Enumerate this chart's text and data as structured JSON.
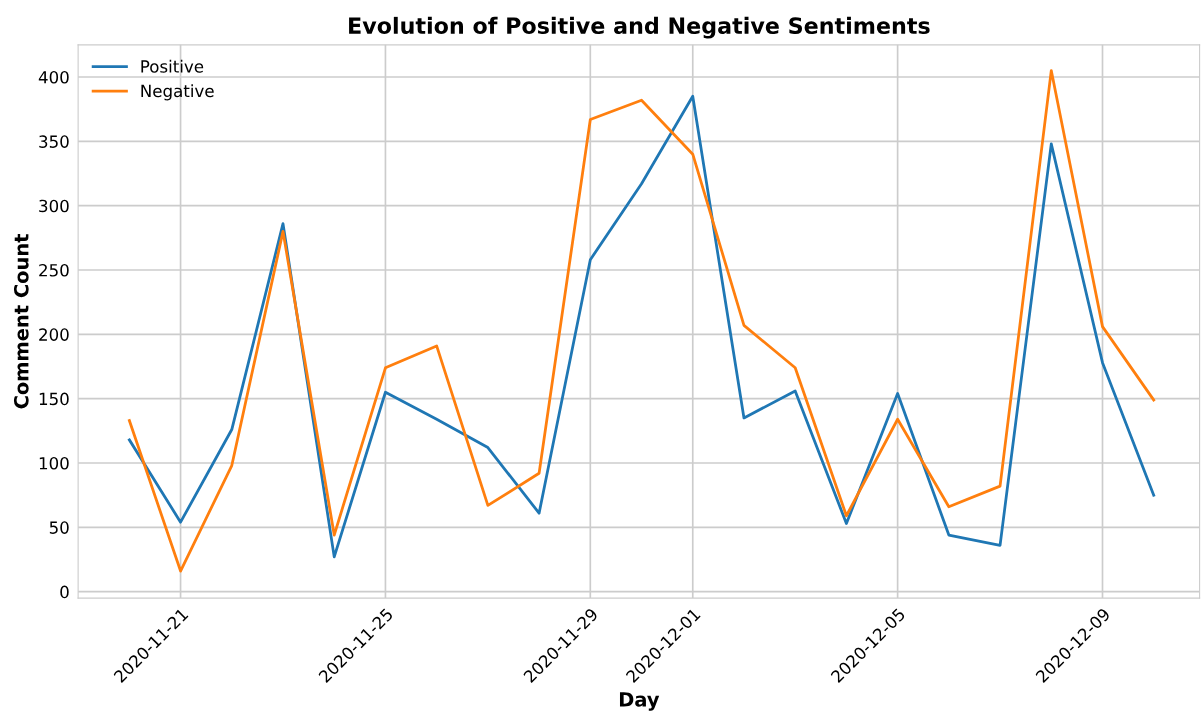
{
  "chart_data": {
    "type": "line",
    "title": "Evolution of Positive and Negative Sentiments",
    "xlabel": "Day",
    "ylabel": "Comment Count",
    "x": [
      "2020-11-20",
      "2020-11-21",
      "2020-11-22",
      "2020-11-23",
      "2020-11-24",
      "2020-11-25",
      "2020-11-26",
      "2020-11-27",
      "2020-11-28",
      "2020-11-29",
      "2020-11-30",
      "2020-12-01",
      "2020-12-02",
      "2020-12-03",
      "2020-12-04",
      "2020-12-05",
      "2020-12-06",
      "2020-12-07",
      "2020-12-08",
      "2020-12-09",
      "2020-12-10"
    ],
    "series": [
      {
        "name": "Positive",
        "color": "#1f77b4",
        "values": [
          118,
          54,
          126,
          286,
          27,
          155,
          134,
          112,
          61,
          258,
          317,
          385,
          135,
          156,
          53,
          154,
          44,
          36,
          348,
          178,
          75
        ]
      },
      {
        "name": "Negative",
        "color": "#ff7f0e",
        "values": [
          133,
          16,
          98,
          280,
          44,
          174,
          191,
          67,
          92,
          367,
          382,
          340,
          207,
          174,
          59,
          134,
          66,
          82,
          405,
          206,
          149
        ]
      }
    ],
    "xlim": [
      "2020-11-19",
      "2020-12-10T21:30"
    ],
    "xticks": [
      "2020-11-21",
      "2020-11-25",
      "2020-11-29",
      "2020-12-01",
      "2020-12-05",
      "2020-12-09"
    ],
    "ylim": [
      -5,
      425
    ],
    "yticks": [
      0,
      50,
      100,
      150,
      200,
      250,
      300,
      350,
      400
    ],
    "grid": true,
    "legend": "top left",
    "line_style": "solid",
    "marker": "none"
  }
}
